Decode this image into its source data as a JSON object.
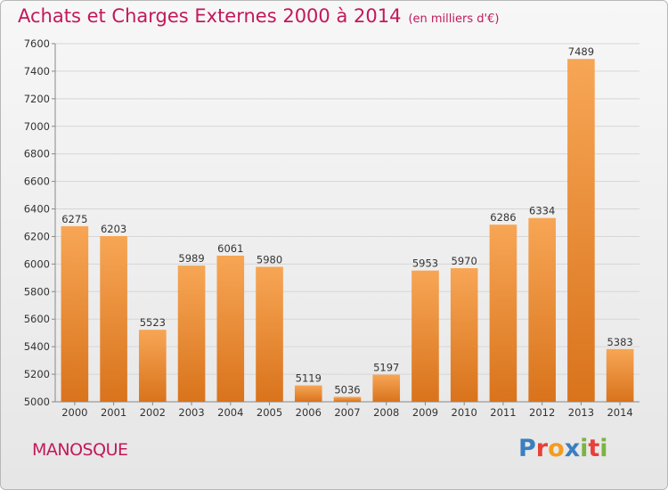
{
  "header": {
    "title": "Achats et Charges Externes 2000 à 2014",
    "subtitle": "(en milliers d'€)"
  },
  "footer": {
    "city": "MANOSQUE",
    "logo_letters": [
      "P",
      "r",
      "o",
      "x",
      "i",
      "t",
      "i"
    ]
  },
  "colors": {
    "title": "#c2185b",
    "bar_light": "#f7a655",
    "bar_dark": "#d9731c",
    "logo": [
      "#3a7fc0",
      "#e8403a",
      "#f39c1f",
      "#3a7fc0",
      "#7cb342",
      "#e8403a",
      "#7cb342"
    ]
  },
  "chart_data": {
    "type": "bar",
    "categories": [
      "2000",
      "2001",
      "2002",
      "2003",
      "2004",
      "2005",
      "2006",
      "2007",
      "2008",
      "2009",
      "2010",
      "2011",
      "2012",
      "2013",
      "2014"
    ],
    "values": [
      6275,
      6203,
      5523,
      5989,
      6061,
      5980,
      5119,
      5036,
      5197,
      5953,
      5970,
      6286,
      6334,
      7489,
      5383
    ],
    "ylim": [
      5000,
      7600
    ],
    "yticks": [
      5000,
      5200,
      5400,
      5600,
      5800,
      6000,
      6200,
      6400,
      6600,
      6800,
      7000,
      7200,
      7400,
      7600
    ],
    "grid": true
  }
}
